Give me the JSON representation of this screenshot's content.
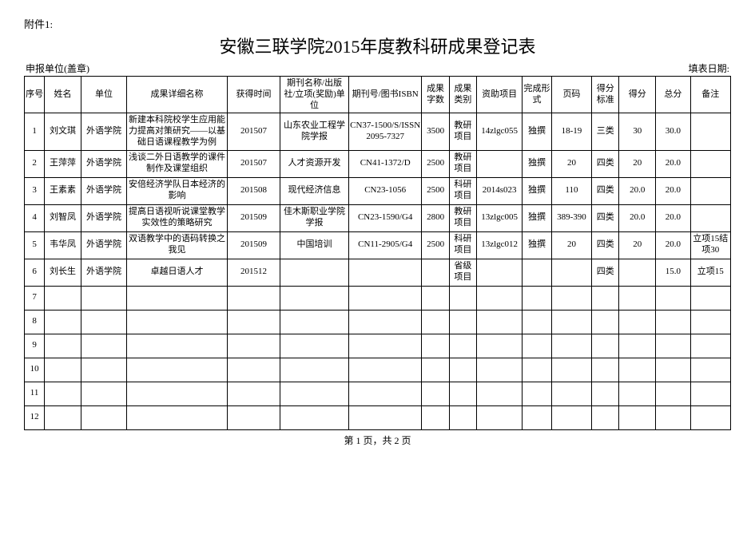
{
  "attachment_label": "附件1:",
  "title": "安徽三联学院2015年度教科研成果登记表",
  "meta_left": "申报单位(盖章)",
  "meta_right": "填表日期:",
  "columns": [
    {
      "key": "idx",
      "label": "序号",
      "w": 22
    },
    {
      "key": "name",
      "label": "姓名",
      "w": 40
    },
    {
      "key": "unit",
      "label": "单位",
      "w": 50
    },
    {
      "key": "detail",
      "label": "成果详细名称",
      "w": 110
    },
    {
      "key": "date",
      "label": "获得时间",
      "w": 58
    },
    {
      "key": "publisher",
      "label": "期刊名称/出版社/立项(奖励)单位",
      "w": 75
    },
    {
      "key": "isbn",
      "label": "期刊号/图书ISBN",
      "w": 80
    },
    {
      "key": "words",
      "label": "成果字数",
      "w": 30
    },
    {
      "key": "cat",
      "label": "成果类别",
      "w": 30
    },
    {
      "key": "fund",
      "label": "资助项目",
      "w": 50
    },
    {
      "key": "form",
      "label": "完成形式",
      "w": 32
    },
    {
      "key": "pages",
      "label": "页码",
      "w": 44
    },
    {
      "key": "std",
      "label": "得分标准",
      "w": 30
    },
    {
      "key": "score",
      "label": "得分",
      "w": 40
    },
    {
      "key": "total",
      "label": "总分",
      "w": 38
    },
    {
      "key": "note",
      "label": "备注",
      "w": 44
    }
  ],
  "rows": [
    {
      "idx": "1",
      "name": "刘文琪",
      "unit": "外语学院",
      "detail": "新建本科院校学生应用能力提高对策研究——以基础日语课程教学为例",
      "date": "201507",
      "publisher": "山东农业工程学院学报",
      "isbn": "CN37-1500/S/ISSN2095-7327",
      "words": "3500",
      "cat": "教研项目",
      "fund": "14zlgc055",
      "form": "独撰",
      "pages": "18-19",
      "std": "三类",
      "score": "30",
      "total": "30.0",
      "note": ""
    },
    {
      "idx": "2",
      "name": "王萍萍",
      "unit": "外语学院",
      "detail": "浅谈二外日语教学的课件制作及课堂组织",
      "date": "201507",
      "publisher": "人才资源开发",
      "isbn": "CN41-1372/D",
      "words": "2500",
      "cat": "教研项目",
      "fund": "",
      "form": "独撰",
      "pages": "20",
      "std": "四类",
      "score": "20",
      "total": "20.0",
      "note": ""
    },
    {
      "idx": "3",
      "name": "王素素",
      "unit": "外语学院",
      "detail": "安倍经济学队日本经济的影响",
      "date": "201508",
      "publisher": "现代经济信息",
      "isbn": "CN23-1056",
      "words": "2500",
      "cat": "科研项目",
      "fund": "2014s023",
      "form": "独撰",
      "pages": "110",
      "std": "四类",
      "score": "20.0",
      "total": "20.0",
      "note": ""
    },
    {
      "idx": "4",
      "name": "刘智凤",
      "unit": "外语学院",
      "detail": "提高日语视听说课堂教学实效性的策略研究",
      "date": "201509",
      "publisher": "佳木斯职业学院学报",
      "isbn": "CN23-1590/G4",
      "words": "2800",
      "cat": "教研项目",
      "fund": "13zlgc005",
      "form": "独撰",
      "pages": "389-390",
      "std": "四类",
      "score": "20.0",
      "total": "20.0",
      "note": ""
    },
    {
      "idx": "5",
      "name": "韦华凤",
      "unit": "外语学院",
      "detail": "双语教学中的语码转换之我见",
      "date": "201509",
      "publisher": "中国培训",
      "isbn": "CN11-2905/G4",
      "words": "2500",
      "cat": "科研项目",
      "fund": "13zlgc012",
      "form": "独撰",
      "pages": "20",
      "std": "四类",
      "score": "20",
      "total": "20.0",
      "note": "立项15结项30"
    },
    {
      "idx": "6",
      "name": "刘长生",
      "unit": "外语学院",
      "detail": "卓越日语人才",
      "date": "201512",
      "publisher": "",
      "isbn": "",
      "words": "",
      "cat": "省级项目",
      "fund": "",
      "form": "",
      "pages": "",
      "std": "四类",
      "score": "",
      "total": "15.0",
      "note": "立项15"
    }
  ],
  "empty_rows": [
    "7",
    "8",
    "9",
    "10",
    "11",
    "12"
  ],
  "footer": "第 1 页，共 2 页"
}
